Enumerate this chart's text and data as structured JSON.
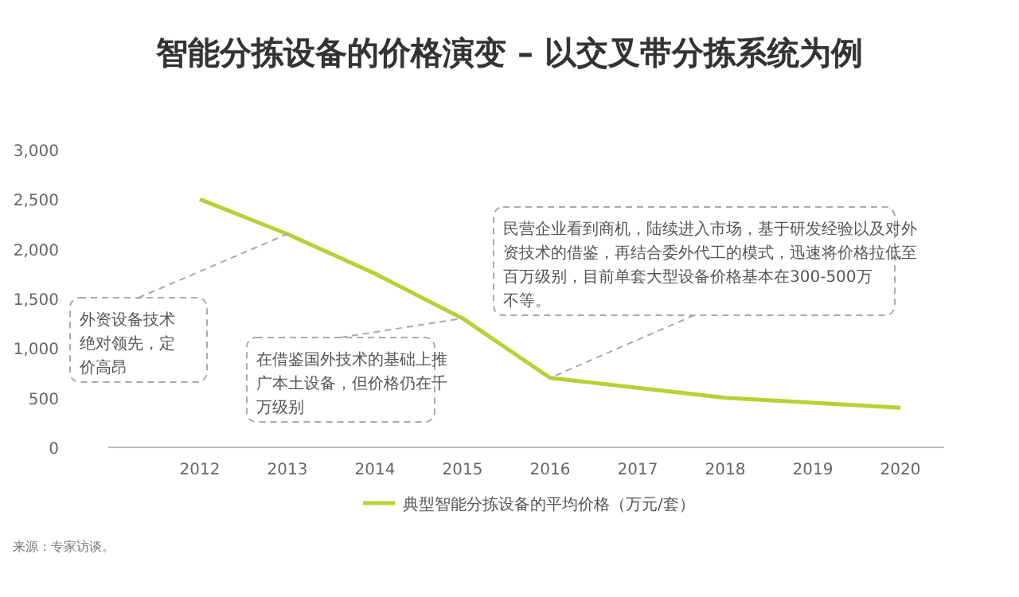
{
  "chart_data": {
    "type": "line",
    "title": "智能分拣设备的价格演变 – 以交叉带分拣系统为例",
    "categories": [
      "2012",
      "2013",
      "2014",
      "2015",
      "2016",
      "2017",
      "2018",
      "2019",
      "2020"
    ],
    "series": [
      {
        "name": "典型智能分拣设备的平均价格（万元/套）",
        "color": "#b5d334",
        "values": [
          2500,
          2150,
          1750,
          1300,
          700,
          600,
          500,
          450,
          400
        ]
      }
    ],
    "ylim": [
      0,
      3000
    ],
    "yticks": [
      {
        "value": 0,
        "label": "0"
      },
      {
        "value": 500,
        "label": "500"
      },
      {
        "value": 1000,
        "label": "1,000"
      },
      {
        "value": 1500,
        "label": "1,500"
      },
      {
        "value": 2000,
        "label": "2,000"
      },
      {
        "value": 2500,
        "label": "2,500"
      },
      {
        "value": 3000,
        "label": "3,000"
      }
    ],
    "grid": false,
    "legend": "bottom",
    "marker": "none",
    "line_style": "solid",
    "annotations": [
      {
        "text": "外资设备技术绝对领先，定价高昂",
        "x": "2013",
        "y": 2150
      },
      {
        "text": "在借鉴国外技术的基础上推广本土设备，但价格仍在千万级别",
        "x": "2015",
        "y": 1300
      },
      {
        "text": "民营企业看到商机，陆续进入市场，基于研发经验以及对外资技术的借鉴，再结合委外代工的模式，迅速将价格拉低至百万级别，目前单套大型设备价格基本在300-500万不等。",
        "x": "2016",
        "y": 700
      },
      "来源：专家访谈。"
    ]
  }
}
